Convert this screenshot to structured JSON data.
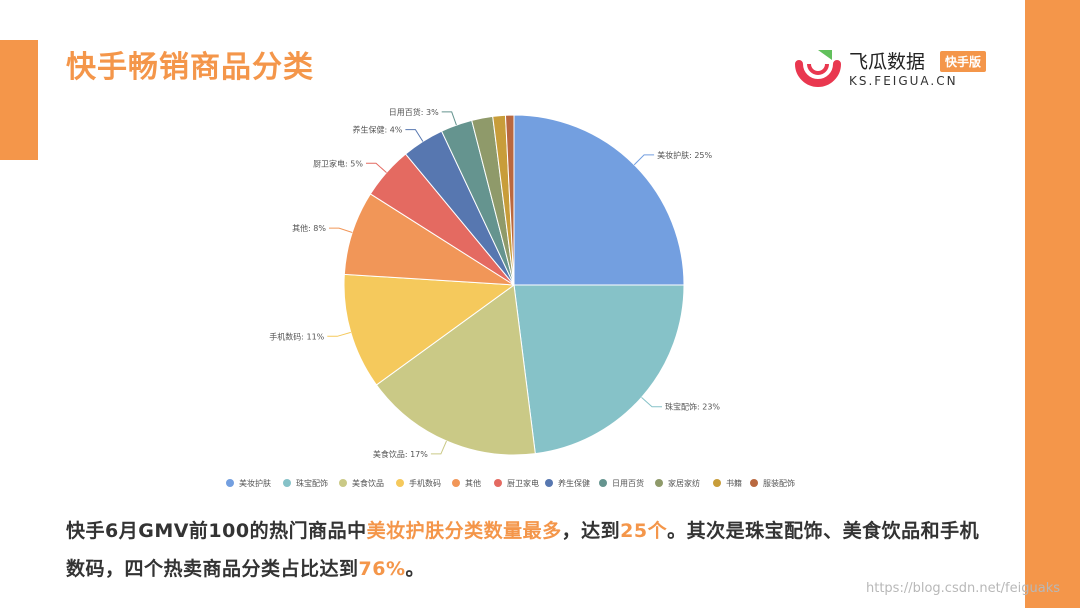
{
  "page": {
    "title": "快手畅销商品分类",
    "logo": {
      "name": "飞瓜数据",
      "badge": "快手版",
      "domain": "KS.FEIGUA.CN"
    },
    "summary": {
      "part1": "快手6月GMV前100的热门商品中",
      "part2": "美妆护肤分类数量最多",
      "part3": "，达到",
      "part4": "25个",
      "part5": "。其次是珠宝配饰、美食饮品和手机数码，四个热卖商品分类占比达到",
      "part6": "76%",
      "part7": "。"
    },
    "watermark": "https://blog.csdn.net/feiguaks",
    "colors": {
      "accent": "#f4964a"
    }
  },
  "chart_data": {
    "type": "pie",
    "legend_position": "bottom",
    "slices": [
      {
        "name": "美妆护肤",
        "value": 25,
        "label": "美妆护肤: 25%",
        "color": "#739fe0"
      },
      {
        "name": "珠宝配饰",
        "value": 23,
        "label": "珠宝配饰: 23%",
        "color": "#86c2c8"
      },
      {
        "name": "美食饮品",
        "value": 17,
        "label": "美食饮品: 17%",
        "color": "#cac986"
      },
      {
        "name": "手机数码",
        "value": 11,
        "label": "手机数码: 11%",
        "color": "#f5c95c"
      },
      {
        "name": "其他",
        "value": 8,
        "label": "其他: 8%",
        "color": "#f19658"
      },
      {
        "name": "厨卫家电",
        "value": 5,
        "label": "厨卫家电: 5%",
        "color": "#e46a61"
      },
      {
        "name": "养生保健",
        "value": 4,
        "label": "养生保健: 4%",
        "color": "#5777b0"
      },
      {
        "name": "日用百货",
        "value": 3,
        "label": "日用百货: 3%",
        "color": "#65948f"
      },
      {
        "name": "家居家纺",
        "value": 2,
        "label": "",
        "color": "#8f9a6a"
      },
      {
        "name": "书籍",
        "value": 1.2,
        "label": "",
        "color": "#c89d3a"
      },
      {
        "name": "服装配饰",
        "value": 0.8,
        "label": "",
        "color": "#b9683f"
      }
    ]
  }
}
